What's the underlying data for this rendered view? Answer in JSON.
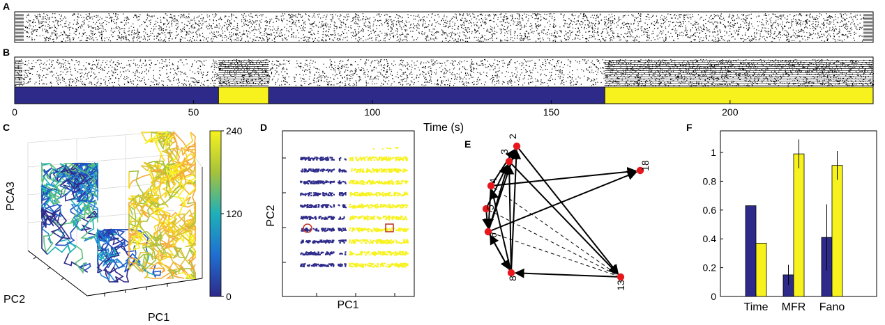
{
  "panel_labels": [
    "A",
    "B",
    "C",
    "D",
    "E",
    "F"
  ],
  "colors": {
    "blue": "#2e2a8a",
    "yellow": "#f7f21e"
  },
  "chart_data": [
    {
      "panel": "A",
      "type": "scatter",
      "description_of_marks": "spike raster",
      "xlim": [
        0,
        240
      ]
    },
    {
      "panel": "B",
      "type": "scatter",
      "xlabel": "Time (s)",
      "xlim": [
        0,
        240
      ],
      "xticks": [
        "0",
        "50",
        "100",
        "150",
        "200"
      ],
      "xtick_values": [
        0,
        50,
        100,
        150,
        200
      ],
      "state_segments": [
        {
          "start": 0,
          "end": 57,
          "state": "blue"
        },
        {
          "start": 57,
          "end": 71,
          "state": "yellow"
        },
        {
          "start": 71,
          "end": 165,
          "state": "blue"
        },
        {
          "start": 165,
          "end": 240,
          "state": "yellow"
        }
      ]
    },
    {
      "panel": "C",
      "type": "line",
      "xlabel": "PC1",
      "ylabel": "PC2",
      "zlabel": "PCA3",
      "colorbar_ticks": [
        "0",
        "120",
        "240"
      ],
      "colorbar_range": [
        0,
        240
      ]
    },
    {
      "panel": "D",
      "type": "scatter",
      "xlabel": "PC1",
      "ylabel": "PC2",
      "rows": 10
    },
    {
      "panel": "E",
      "type": "table",
      "nodes": [
        "2",
        "3",
        "4",
        "5",
        "6",
        "8",
        "13",
        "18"
      ]
    },
    {
      "panel": "F",
      "type": "bar",
      "categories": [
        "Time",
        "MFR",
        "Fano"
      ],
      "ylim": [
        0,
        1.15
      ],
      "yticks": [
        "0",
        "0.2",
        "0.4",
        "0.6",
        "0.8",
        "1"
      ],
      "ytick_values": [
        0,
        0.2,
        0.4,
        0.6,
        0.8,
        1
      ],
      "series": [
        {
          "color": "blue",
          "values": [
            0.63,
            0.15,
            0.41
          ],
          "errors": [
            0,
            0.07,
            0.23
          ]
        },
        {
          "color": "yellow",
          "values": [
            0.37,
            0.99,
            0.91
          ],
          "errors": [
            0,
            0.1,
            0.1
          ]
        }
      ]
    }
  ]
}
